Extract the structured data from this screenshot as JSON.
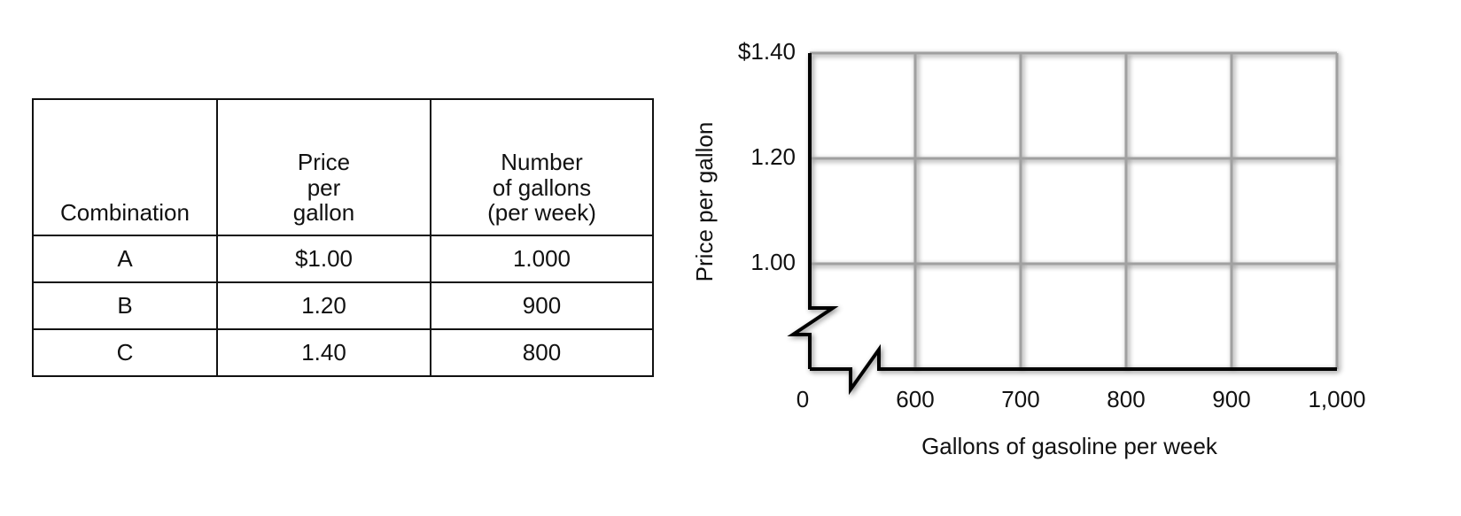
{
  "table": {
    "header": [
      [
        "Combination"
      ],
      [
        "Price",
        "per",
        "gallon"
      ],
      [
        "Number",
        "of gallons",
        "(per week)"
      ]
    ],
    "rows": [
      [
        "A",
        "$1.00",
        "1.000"
      ],
      [
        "B",
        "1.20",
        "900"
      ],
      [
        "C",
        "1.40",
        "800"
      ]
    ]
  },
  "chart_data": {
    "type": "line",
    "x_label": "Gallons of gasoline per week",
    "y_label": "Price per gallon",
    "origin_label": "0",
    "xlim": [
      500,
      1000
    ],
    "xticks": [
      600,
      700,
      800,
      900,
      {
        "value": 1000,
        "label": "1,000"
      }
    ],
    "ylim": [
      0.8,
      1.4
    ],
    "yticks": [
      {
        "value": 1,
        "label": "1.00"
      },
      {
        "value": 1.2,
        "label": "1.20"
      },
      {
        "value": 1.4,
        "label": "$1.40"
      }
    ],
    "grid": true,
    "axis_break": true,
    "series": []
  }
}
